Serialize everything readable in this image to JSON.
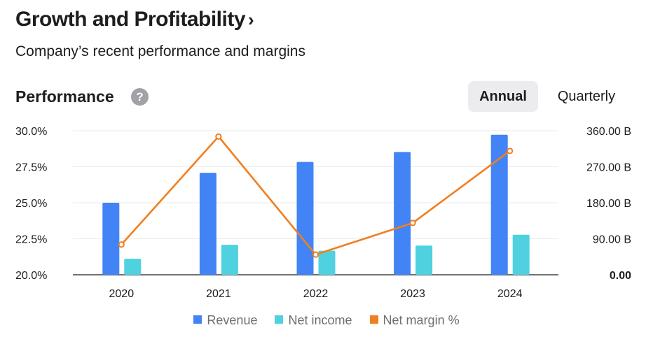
{
  "header": {
    "title": "Growth and Profitability",
    "title_chevron": "›",
    "subtitle": "Company’s recent performance and margins"
  },
  "performance": {
    "title": "Performance",
    "help_icon": "?",
    "tabs": {
      "annual": "Annual",
      "quarterly": "Quarterly"
    }
  },
  "colors": {
    "revenue": "#4284f5",
    "net_income": "#4fd1e0",
    "net_margin": "#f17f1f",
    "grid": "#ebebeb",
    "axis": "#1d1d1f",
    "text": "#1d1d1f"
  },
  "chart_data": {
    "type": "bar",
    "categories": [
      "2020",
      "2021",
      "2022",
      "2023",
      "2024"
    ],
    "series": [
      {
        "name": "Revenue",
        "kind": "bar",
        "axis": "right",
        "values": [
          180,
          255,
          282,
          307,
          350
        ]
      },
      {
        "name": "Net income",
        "kind": "bar",
        "axis": "right",
        "values": [
          40,
          75,
          60,
          73,
          100
        ]
      },
      {
        "name": "Net margin %",
        "kind": "line",
        "axis": "left",
        "values": [
          22.1,
          29.6,
          21.4,
          23.6,
          28.6
        ]
      }
    ],
    "y_left": {
      "min": 20,
      "max": 30,
      "ticks": [
        "30.0%",
        "27.5%",
        "25.0%",
        "22.5%",
        "20.0%"
      ]
    },
    "y_right": {
      "min": 0,
      "max": 360,
      "ticks": [
        "360.00 B",
        "270.00 B",
        "180.00 B",
        "90.00 B",
        "0.00"
      ]
    },
    "legend": [
      "Revenue",
      "Net income",
      "Net margin %"
    ],
    "legend_position": "bottom",
    "grid": true
  }
}
